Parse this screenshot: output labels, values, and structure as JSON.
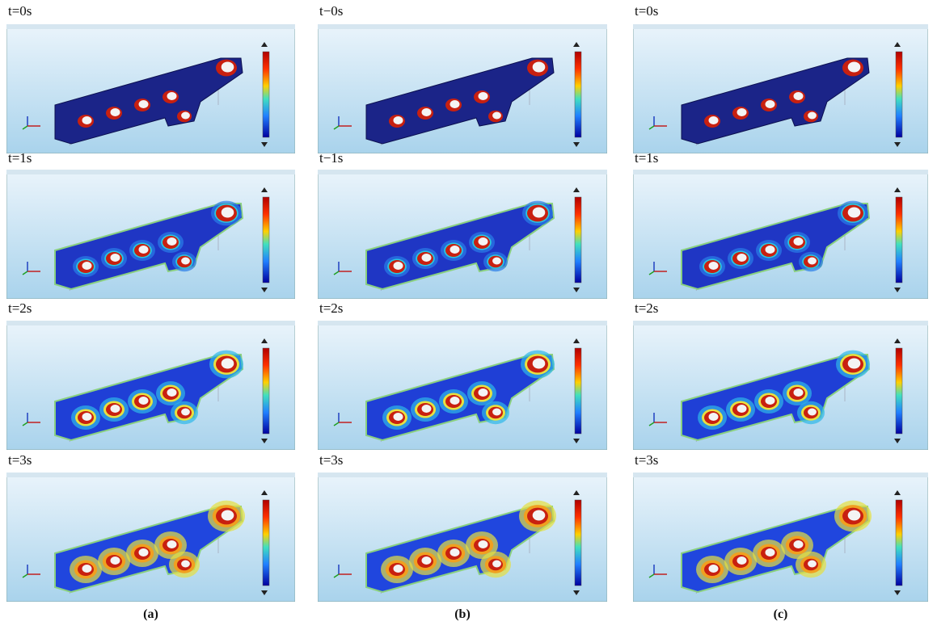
{
  "columns": [
    {
      "label": "(a)",
      "panels": [
        "t=0s",
        "t=1s",
        "t=2s",
        "t=3s"
      ]
    },
    {
      "label": "(b)",
      "panels": [
        "t−0s",
        "t−1s",
        "t=2s",
        "t=3s"
      ]
    },
    {
      "label": "(c)",
      "panels": [
        "t=0s",
        "t=1s",
        "t=2s",
        "t=3s"
      ]
    }
  ]
}
